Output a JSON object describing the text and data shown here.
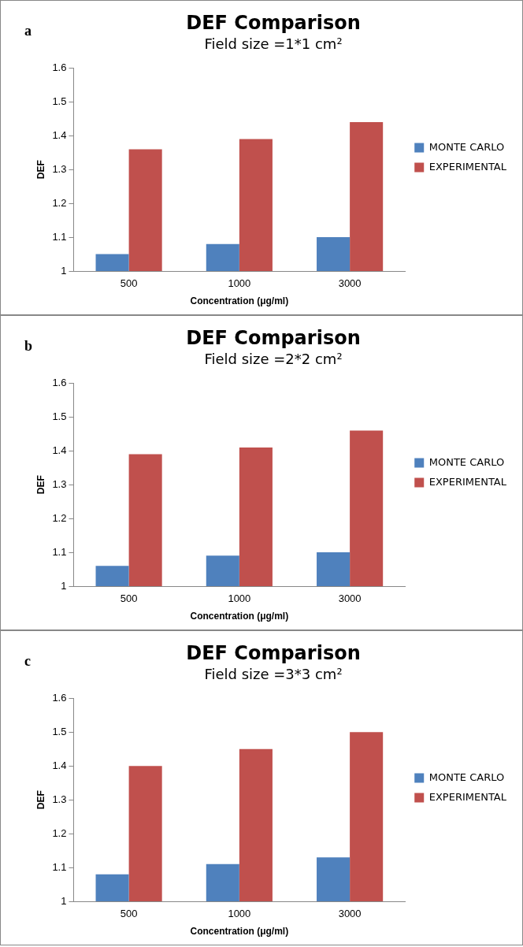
{
  "chart_data": [
    {
      "type": "bar",
      "title": "DEF Comparison",
      "subtitle": "Field size =1*1 cm²",
      "xlabel": "Concentration (μg/ml)",
      "ylabel": "DEF",
      "annotations": [
        "a"
      ],
      "categories": [
        "500",
        "1000",
        "3000"
      ],
      "series": [
        {
          "name": "MONTE CARLO",
          "color": "#4f81bd",
          "values": [
            1.05,
            1.08,
            1.1
          ]
        },
        {
          "name": "EXPERIMENTAL",
          "color": "#c0504d",
          "values": [
            1.36,
            1.39,
            1.44
          ]
        }
      ],
      "ylim": [
        1,
        1.6
      ],
      "yticks": [
        1,
        1.1,
        1.2,
        1.3,
        1.4,
        1.5,
        1.6
      ],
      "grid": false,
      "legend": "right"
    },
    {
      "type": "bar",
      "title": "DEF Comparison",
      "subtitle": "Field size =2*2 cm²",
      "xlabel": "Concentration (μg/ml)",
      "ylabel": "DEF",
      "annotations": [
        "b"
      ],
      "categories": [
        "500",
        "1000",
        "3000"
      ],
      "series": [
        {
          "name": "MONTE CARLO",
          "color": "#4f81bd",
          "values": [
            1.06,
            1.09,
            1.1
          ]
        },
        {
          "name": "EXPERIMENTAL",
          "color": "#c0504d",
          "values": [
            1.39,
            1.41,
            1.46
          ]
        }
      ],
      "ylim": [
        1,
        1.6
      ],
      "yticks": [
        1,
        1.1,
        1.2,
        1.3,
        1.4,
        1.5,
        1.6
      ],
      "grid": false,
      "legend": "right"
    },
    {
      "type": "bar",
      "title": "DEF Comparison",
      "subtitle": "Field size =3*3 cm²",
      "xlabel": "Concentration (μg/ml)",
      "ylabel": "DEF",
      "annotations": [
        "c"
      ],
      "categories": [
        "500",
        "1000",
        "3000"
      ],
      "series": [
        {
          "name": "MONTE CARLO",
          "color": "#4f81bd",
          "values": [
            1.08,
            1.11,
            1.13
          ]
        },
        {
          "name": "EXPERIMENTAL",
          "color": "#c0504d",
          "values": [
            1.4,
            1.45,
            1.5
          ]
        }
      ],
      "ylim": [
        1,
        1.6
      ],
      "yticks": [
        1,
        1.1,
        1.2,
        1.3,
        1.4,
        1.5,
        1.6
      ],
      "grid": false,
      "legend": "right"
    }
  ]
}
